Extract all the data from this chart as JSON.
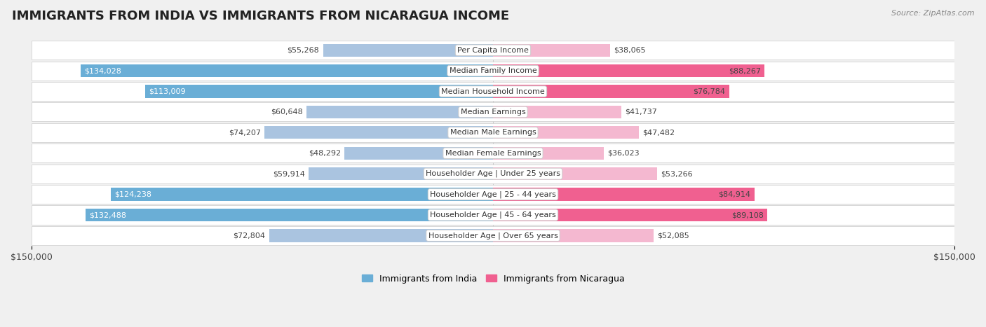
{
  "title": "IMMIGRANTS FROM INDIA VS IMMIGRANTS FROM NICARAGUA INCOME",
  "source": "Source: ZipAtlas.com",
  "categories": [
    "Per Capita Income",
    "Median Family Income",
    "Median Household Income",
    "Median Earnings",
    "Median Male Earnings",
    "Median Female Earnings",
    "Householder Age | Under 25 years",
    "Householder Age | 25 - 44 years",
    "Householder Age | 45 - 64 years",
    "Householder Age | Over 65 years"
  ],
  "india_values": [
    55268,
    134028,
    113009,
    60648,
    74207,
    48292,
    59914,
    124238,
    132488,
    72804
  ],
  "nicaragua_values": [
    38065,
    88267,
    76784,
    41737,
    47482,
    36023,
    53266,
    84914,
    89108,
    52085
  ],
  "india_color_light": "#aac4e0",
  "india_color_dark": "#6aaed6",
  "nicaragua_color_light": "#f4b8d0",
  "nicaragua_color_dark": "#f06090",
  "india_label": "Immigrants from India",
  "nicaragua_label": "Immigrants from Nicaragua",
  "xlim": 150000,
  "bg_color": "#f0f0f0",
  "row_color": "#ffffff",
  "title_fontsize": 13,
  "source_fontsize": 8,
  "bar_label_fontsize": 8,
  "cat_label_fontsize": 8
}
